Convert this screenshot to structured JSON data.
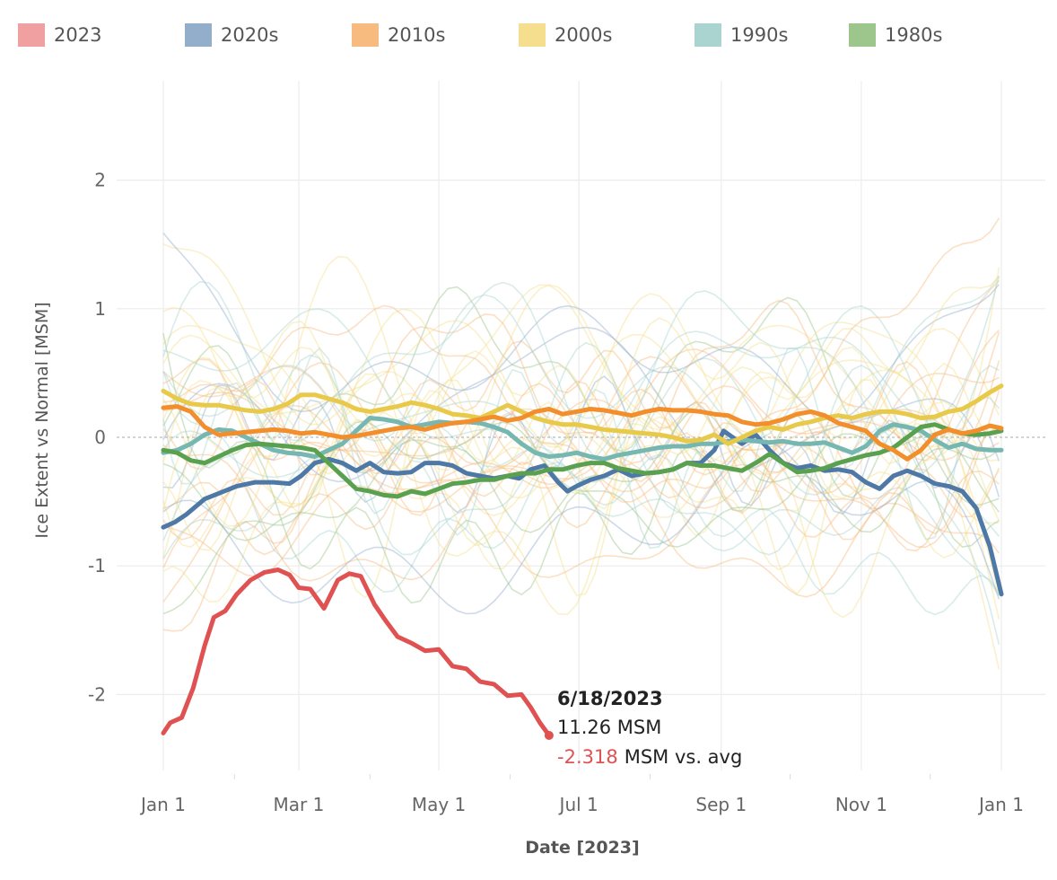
{
  "chart_data": {
    "type": "line",
    "title": "",
    "xlabel": "Date [2023]",
    "ylabel": "Ice Extent vs Normal [MSM]",
    "ylim": [
      -2.65,
      2.65
    ],
    "xlim_day_of_year": [
      0,
      365
    ],
    "grid": true,
    "legend_position": "top",
    "x_ticks": [
      {
        "label": "Jan 1",
        "day": 0
      },
      {
        "label": "Mar 1",
        "day": 59
      },
      {
        "label": "May 1",
        "day": 120
      },
      {
        "label": "Jul 1",
        "day": 181
      },
      {
        "label": "Sep 1",
        "day": 243
      },
      {
        "label": "Nov 1",
        "day": 304
      },
      {
        "label": "Jan 1",
        "day": 365
      }
    ],
    "y_ticks": [
      {
        "label": "2",
        "value": 2
      },
      {
        "label": "1",
        "value": 1
      },
      {
        "label": "0",
        "value": 0
      },
      {
        "label": "-1",
        "value": -1
      },
      {
        "label": "-2",
        "value": -2
      }
    ],
    "reference_line": 0,
    "legend": [
      {
        "name": "2023",
        "color": "#f0a0a0"
      },
      {
        "name": "2020s",
        "color": "#93aecb"
      },
      {
        "name": "2010s",
        "color": "#f7ba7f"
      },
      {
        "name": "2000s",
        "color": "#f5df8f"
      },
      {
        "name": "1990s",
        "color": "#a9d4d0"
      },
      {
        "name": "1980s",
        "color": "#9cc68c"
      }
    ],
    "series": [
      {
        "name": "2023",
        "color": "#e05252",
        "x": [
          0,
          3,
          8,
          13,
          18,
          22,
          27,
          32,
          38,
          44,
          50,
          55,
          59,
          64,
          70,
          76,
          81,
          86,
          92,
          97,
          102,
          108,
          114,
          120,
          126,
          132,
          138,
          144,
          150,
          156,
          160,
          164,
          168
        ],
        "values": [
          -2.3,
          -2.22,
          -2.18,
          -1.95,
          -1.62,
          -1.4,
          -1.35,
          -1.22,
          -1.11,
          -1.05,
          -1.03,
          -1.07,
          -1.17,
          -1.18,
          -1.33,
          -1.11,
          -1.06,
          -1.08,
          -1.3,
          -1.43,
          -1.55,
          -1.6,
          -1.66,
          -1.65,
          -1.78,
          -1.8,
          -1.9,
          -1.92,
          -2.01,
          -2.0,
          -2.1,
          -2.22,
          -2.318
        ]
      },
      {
        "name": "2020s",
        "color": "#4e79a7",
        "x": [
          0,
          5,
          10,
          18,
          25,
          32,
          40,
          48,
          55,
          60,
          66,
          72,
          78,
          84,
          90,
          96,
          102,
          108,
          114,
          120,
          126,
          132,
          138,
          144,
          150,
          155,
          160,
          166,
          172,
          176,
          180,
          186,
          192,
          198,
          204,
          210,
          216,
          222,
          228,
          234,
          240,
          244,
          248,
          252,
          258,
          264,
          270,
          276,
          282,
          288,
          294,
          300,
          306,
          312,
          318,
          324,
          330,
          336,
          342,
          348,
          354,
          360,
          365
        ],
        "values": [
          -0.7,
          -0.66,
          -0.6,
          -0.48,
          -0.43,
          -0.38,
          -0.35,
          -0.35,
          -0.36,
          -0.3,
          -0.2,
          -0.17,
          -0.2,
          -0.26,
          -0.2,
          -0.27,
          -0.28,
          -0.27,
          -0.2,
          -0.2,
          -0.22,
          -0.28,
          -0.3,
          -0.32,
          -0.3,
          -0.32,
          -0.25,
          -0.22,
          -0.35,
          -0.42,
          -0.38,
          -0.33,
          -0.3,
          -0.25,
          -0.3,
          -0.28,
          -0.27,
          -0.25,
          -0.2,
          -0.2,
          -0.1,
          0.05,
          0.0,
          -0.05,
          0.02,
          -0.1,
          -0.2,
          -0.24,
          -0.22,
          -0.26,
          -0.25,
          -0.27,
          -0.35,
          -0.4,
          -0.3,
          -0.26,
          -0.3,
          -0.36,
          -0.38,
          -0.42,
          -0.55,
          -0.85,
          -1.22
        ]
      },
      {
        "name": "2010s",
        "color": "#f28e2b",
        "x": [
          0,
          6,
          12,
          18,
          24,
          30,
          36,
          42,
          48,
          54,
          60,
          66,
          72,
          78,
          84,
          90,
          96,
          102,
          108,
          114,
          120,
          126,
          132,
          138,
          144,
          150,
          156,
          162,
          168,
          174,
          180,
          186,
          192,
          198,
          204,
          210,
          216,
          222,
          228,
          234,
          240,
          246,
          252,
          258,
          264,
          270,
          276,
          282,
          288,
          294,
          300,
          306,
          312,
          318,
          324,
          330,
          336,
          342,
          348,
          354,
          360,
          365
        ],
        "values": [
          0.23,
          0.24,
          0.2,
          0.08,
          0.02,
          0.03,
          0.04,
          0.05,
          0.06,
          0.05,
          0.03,
          0.04,
          0.02,
          0.0,
          0.01,
          0.03,
          0.05,
          0.07,
          0.08,
          0.06,
          0.09,
          0.11,
          0.12,
          0.14,
          0.16,
          0.13,
          0.15,
          0.2,
          0.22,
          0.18,
          0.2,
          0.22,
          0.21,
          0.19,
          0.17,
          0.2,
          0.22,
          0.21,
          0.21,
          0.2,
          0.18,
          0.17,
          0.12,
          0.1,
          0.11,
          0.14,
          0.18,
          0.2,
          0.17,
          0.11,
          0.08,
          0.05,
          -0.05,
          -0.1,
          -0.17,
          -0.1,
          0.02,
          0.06,
          0.03,
          0.05,
          0.09,
          0.07
        ]
      },
      {
        "name": "2000s",
        "color": "#e8c94a",
        "x": [
          0,
          6,
          12,
          18,
          24,
          30,
          36,
          42,
          48,
          54,
          60,
          66,
          72,
          78,
          84,
          90,
          96,
          102,
          108,
          114,
          120,
          126,
          132,
          138,
          144,
          150,
          156,
          162,
          168,
          174,
          180,
          186,
          192,
          198,
          204,
          210,
          216,
          222,
          228,
          234,
          240,
          246,
          252,
          258,
          264,
          270,
          276,
          282,
          288,
          294,
          300,
          306,
          312,
          318,
          324,
          330,
          336,
          342,
          348,
          354,
          360,
          365
        ],
        "values": [
          0.36,
          0.3,
          0.26,
          0.25,
          0.25,
          0.23,
          0.21,
          0.2,
          0.22,
          0.26,
          0.33,
          0.33,
          0.3,
          0.27,
          0.22,
          0.2,
          0.22,
          0.24,
          0.27,
          0.25,
          0.22,
          0.18,
          0.17,
          0.15,
          0.2,
          0.25,
          0.2,
          0.15,
          0.12,
          0.1,
          0.1,
          0.08,
          0.06,
          0.05,
          0.04,
          0.03,
          0.02,
          0.0,
          -0.03,
          -0.02,
          0.02,
          -0.05,
          0.0,
          0.05,
          0.08,
          0.06,
          0.1,
          0.12,
          0.15,
          0.17,
          0.15,
          0.18,
          0.2,
          0.2,
          0.18,
          0.15,
          0.16,
          0.2,
          0.22,
          0.28,
          0.35,
          0.4
        ]
      },
      {
        "name": "1990s",
        "color": "#76b7b2",
        "x": [
          0,
          6,
          12,
          18,
          24,
          30,
          36,
          42,
          48,
          54,
          60,
          66,
          72,
          78,
          84,
          90,
          96,
          102,
          108,
          114,
          120,
          126,
          132,
          138,
          144,
          150,
          156,
          162,
          168,
          174,
          180,
          186,
          192,
          198,
          204,
          210,
          216,
          222,
          228,
          234,
          240,
          246,
          252,
          258,
          264,
          270,
          276,
          282,
          288,
          294,
          300,
          306,
          312,
          318,
          324,
          330,
          336,
          342,
          348,
          354,
          360,
          365
        ],
        "values": [
          -0.12,
          -0.1,
          -0.05,
          0.02,
          0.06,
          0.05,
          0.0,
          -0.05,
          -0.1,
          -0.12,
          -0.13,
          -0.15,
          -0.1,
          -0.05,
          0.05,
          0.15,
          0.14,
          0.12,
          0.08,
          0.1,
          0.12,
          0.11,
          0.12,
          0.11,
          0.08,
          0.04,
          -0.05,
          -0.12,
          -0.15,
          -0.14,
          -0.12,
          -0.15,
          -0.17,
          -0.14,
          -0.12,
          -0.1,
          -0.08,
          -0.07,
          -0.07,
          -0.05,
          -0.05,
          -0.03,
          -0.02,
          -0.03,
          -0.04,
          -0.03,
          -0.05,
          -0.05,
          -0.04,
          -0.08,
          -0.12,
          -0.07,
          0.05,
          0.1,
          0.08,
          0.05,
          -0.02,
          -0.08,
          -0.05,
          -0.09,
          -0.1,
          -0.1
        ]
      },
      {
        "name": "1980s",
        "color": "#59a14f",
        "x": [
          0,
          6,
          12,
          18,
          24,
          30,
          36,
          42,
          48,
          54,
          60,
          66,
          72,
          78,
          84,
          90,
          96,
          102,
          108,
          114,
          120,
          126,
          132,
          138,
          144,
          150,
          156,
          162,
          168,
          174,
          180,
          186,
          192,
          198,
          204,
          210,
          216,
          222,
          228,
          234,
          240,
          246,
          252,
          258,
          264,
          270,
          276,
          282,
          288,
          294,
          300,
          306,
          312,
          318,
          324,
          330,
          336,
          342,
          348,
          354,
          360,
          365
        ],
        "values": [
          -0.1,
          -0.12,
          -0.18,
          -0.2,
          -0.15,
          -0.1,
          -0.06,
          -0.05,
          -0.06,
          -0.07,
          -0.08,
          -0.1,
          -0.2,
          -0.3,
          -0.4,
          -0.42,
          -0.45,
          -0.46,
          -0.42,
          -0.44,
          -0.4,
          -0.36,
          -0.35,
          -0.33,
          -0.33,
          -0.3,
          -0.28,
          -0.28,
          -0.25,
          -0.25,
          -0.22,
          -0.2,
          -0.2,
          -0.24,
          -0.26,
          -0.28,
          -0.27,
          -0.25,
          -0.2,
          -0.22,
          -0.22,
          -0.24,
          -0.26,
          -0.2,
          -0.13,
          -0.2,
          -0.27,
          -0.26,
          -0.24,
          -0.2,
          -0.17,
          -0.14,
          -0.12,
          -0.08,
          0.0,
          0.08,
          0.1,
          0.06,
          0.03,
          0.02,
          0.03,
          0.05
        ]
      }
    ],
    "annotation": {
      "date": "6/18/2023",
      "value": "11.26 MSM",
      "delta_value": "-2.318",
      "delta_suffix": "MSM vs. avg"
    }
  },
  "background_years_note": "faint individual-year traces colored by decade"
}
